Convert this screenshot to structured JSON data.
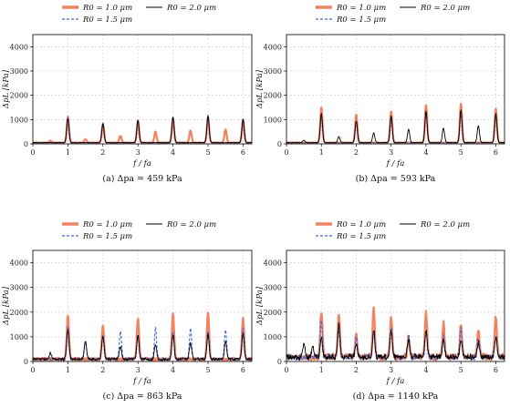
{
  "figure": {
    "legend_labels": [
      "R0 = 1.0 μm",
      "R0 = 1.5 μm",
      "R0 = 2.0 μm"
    ]
  },
  "chart_data": [
    {
      "type": "line",
      "caption": "(a) Δpa = 459 kPa",
      "xlabel": "f / fa",
      "ylabel": "ΔpL [kPa]",
      "xlim": [
        0,
        6.25
      ],
      "ylim": [
        0,
        4500
      ],
      "xticks": [
        0,
        1,
        2,
        3,
        4,
        5,
        6
      ],
      "yticks": [
        0,
        1000,
        2000,
        3000,
        4000
      ],
      "grid": true,
      "legend_position": "top",
      "series": [
        {
          "name": "R0 = 1.0 μm",
          "color": "#f4825e",
          "style": "solid",
          "peaks": [
            [
              0.5,
              80
            ],
            [
              1,
              1050
            ],
            [
              1.5,
              150
            ],
            [
              2,
              750
            ],
            [
              2.5,
              280
            ],
            [
              3,
              900
            ],
            [
              3.5,
              450
            ],
            [
              4,
              1000
            ],
            [
              4.5,
              500
            ],
            [
              5,
              1050
            ],
            [
              5.5,
              550
            ],
            [
              6,
              950
            ]
          ]
        },
        {
          "name": "R0 = 1.5 μm",
          "color": "#4169e1",
          "style": "dashed",
          "peaks": [
            [
              1,
              1100
            ],
            [
              2,
              820
            ],
            [
              3,
              950
            ],
            [
              4,
              1080
            ],
            [
              5,
              1150
            ],
            [
              6,
              1000
            ]
          ]
        },
        {
          "name": "R0 = 2.0 μm",
          "color": "#000000",
          "style": "solid",
          "peaks": [
            [
              1,
              1000
            ],
            [
              2,
              780
            ],
            [
              3,
              920
            ],
            [
              4,
              1050
            ],
            [
              5,
              1100
            ],
            [
              6,
              950
            ]
          ]
        }
      ]
    },
    {
      "type": "line",
      "caption": "(b) Δpa = 593 kPa",
      "xlabel": "f / fa",
      "ylabel": "ΔpL [kPa]",
      "xlim": [
        0,
        6.25
      ],
      "ylim": [
        0,
        4500
      ],
      "xticks": [
        0,
        1,
        2,
        3,
        4,
        5,
        6
      ],
      "yticks": [
        0,
        1000,
        2000,
        3000,
        4000
      ],
      "grid": true,
      "legend_position": "top",
      "series": [
        {
          "name": "R0 = 1.0 μm",
          "color": "#f4825e",
          "style": "solid",
          "peaks": [
            [
              1,
              1450
            ],
            [
              2,
              1150
            ],
            [
              3,
              1300
            ],
            [
              4,
              1550
            ],
            [
              5,
              1600
            ],
            [
              6,
              1400
            ]
          ]
        },
        {
          "name": "R0 = 1.5 μm",
          "color": "#4169e1",
          "style": "dashed",
          "peaks": [
            [
              1,
              1100
            ],
            [
              2,
              850
            ],
            [
              3,
              1000
            ],
            [
              4,
              1200
            ],
            [
              5,
              1250
            ],
            [
              6,
              1100
            ]
          ]
        },
        {
          "name": "R0 = 2.0 μm",
          "color": "#000000",
          "style": "solid",
          "peaks": [
            [
              0.5,
              100
            ],
            [
              1,
              1200
            ],
            [
              1.5,
              250
            ],
            [
              2,
              900
            ],
            [
              2.5,
              400
            ],
            [
              3,
              1100
            ],
            [
              3.5,
              550
            ],
            [
              4,
              1300
            ],
            [
              4.5,
              600
            ],
            [
              5,
              1350
            ],
            [
              5.5,
              700
            ],
            [
              6,
              1200
            ]
          ]
        }
      ]
    },
    {
      "type": "line",
      "caption": "(c) Δpa = 863 kPa",
      "xlabel": "f / fa",
      "ylabel": "ΔpL [kPa]",
      "xlim": [
        0,
        6.25
      ],
      "ylim": [
        0,
        4500
      ],
      "xticks": [
        0,
        1,
        2,
        3,
        4,
        5,
        6
      ],
      "yticks": [
        0,
        1000,
        2000,
        3000,
        4000
      ],
      "grid": true,
      "legend_position": "top",
      "series": [
        {
          "name": "R0 = 1.0 μm",
          "color": "#f4825e",
          "style": "solid",
          "peaks": [
            [
              1,
              1800
            ],
            [
              2,
              1400
            ],
            [
              3,
              1650
            ],
            [
              4,
              1900
            ],
            [
              5,
              1900
            ],
            [
              6,
              1650
            ]
          ]
        },
        {
          "name": "R0 = 1.5 μm",
          "color": "#4169e1",
          "style": "dashed",
          "peaks": [
            [
              1,
              1300
            ],
            [
              1.5,
              700
            ],
            [
              2,
              1000
            ],
            [
              2.5,
              1150
            ],
            [
              3,
              900
            ],
            [
              3.5,
              1250
            ],
            [
              4,
              1100
            ],
            [
              4.5,
              1250
            ],
            [
              5,
              1150
            ],
            [
              5.5,
              1200
            ],
            [
              6,
              1300
            ]
          ]
        },
        {
          "name": "R0 = 2.0 μm",
          "color": "#000000",
          "style": "solid",
          "peaks": [
            [
              0.5,
              250
            ],
            [
              1,
              1200
            ],
            [
              1.5,
              750
            ],
            [
              2,
              950
            ],
            [
              2.5,
              500
            ],
            [
              3,
              950
            ],
            [
              3.5,
              600
            ],
            [
              4,
              1000
            ],
            [
              4.5,
              650
            ],
            [
              5,
              1000
            ],
            [
              5.5,
              700
            ],
            [
              6,
              1050
            ]
          ]
        }
      ]
    },
    {
      "type": "line",
      "caption": "(d) Δpa = 1140 kPa",
      "xlabel": "f / fa",
      "ylabel": "ΔpL [kPa]",
      "xlim": [
        0,
        6.25
      ],
      "ylim": [
        0,
        4500
      ],
      "xticks": [
        0,
        1,
        2,
        3,
        4,
        5,
        6
      ],
      "yticks": [
        0,
        1000,
        2000,
        3000,
        4000
      ],
      "grid": true,
      "legend_position": "top",
      "series": [
        {
          "name": "R0 = 1.0 μm",
          "color": "#f4825e",
          "style": "solid",
          "peaks": [
            [
              1,
              1850
            ],
            [
              1.5,
              1700
            ],
            [
              2,
              900
            ],
            [
              2.5,
              2000
            ],
            [
              3,
              1600
            ],
            [
              3.5,
              800
            ],
            [
              4,
              1800
            ],
            [
              4.5,
              1350
            ],
            [
              5,
              1300
            ],
            [
              5.5,
              1100
            ],
            [
              6,
              1650
            ]
          ]
        },
        {
          "name": "R0 = 1.5 μm",
          "color": "#4169e1",
          "style": "dashed",
          "peaks": [
            [
              1,
              1400
            ],
            [
              1.5,
              1100
            ],
            [
              2,
              800
            ],
            [
              2.5,
              950
            ],
            [
              3,
              1200
            ],
            [
              3.5,
              900
            ],
            [
              4,
              1000
            ],
            [
              4.5,
              850
            ],
            [
              5,
              1100
            ],
            [
              5.5,
              800
            ],
            [
              6,
              900
            ]
          ]
        },
        {
          "name": "R0 = 2.0 μm",
          "color": "#000000",
          "style": "solid",
          "peaks": [
            [
              0.5,
              550
            ],
            [
              0.75,
              400
            ],
            [
              1,
              750
            ],
            [
              1.5,
              1300
            ],
            [
              2,
              600
            ],
            [
              2.5,
              1100
            ],
            [
              3,
              1000
            ],
            [
              3.5,
              700
            ],
            [
              4,
              1100
            ],
            [
              4.5,
              650
            ],
            [
              5,
              700
            ],
            [
              5.5,
              600
            ],
            [
              6,
              800
            ]
          ]
        }
      ]
    }
  ]
}
